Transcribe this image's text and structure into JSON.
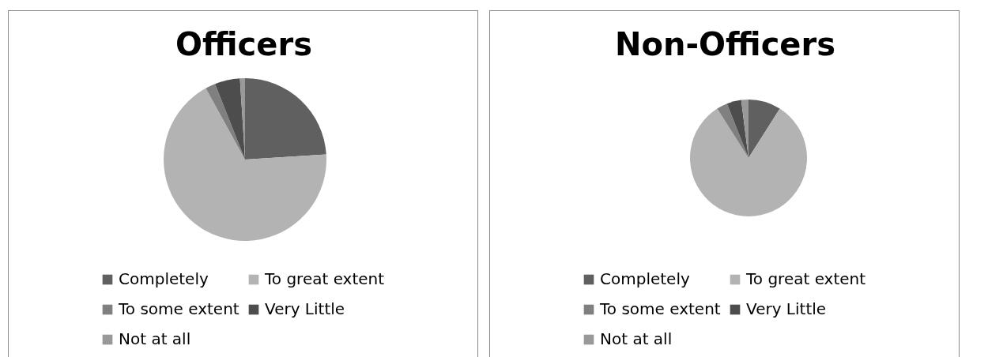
{
  "chart_data": [
    {
      "type": "pie",
      "title": "Officers",
      "categories": [
        "Completely",
        "To great extent",
        "To some extent",
        "Very Little",
        "Not at all"
      ],
      "values": [
        24,
        68,
        2,
        5,
        1
      ],
      "colors": [
        "#606060",
        "#b3b3b3",
        "#808080",
        "#4d4d4d",
        "#999999"
      ],
      "legend": "bottom"
    },
    {
      "type": "pie",
      "title": "Non-Officers",
      "categories": [
        "Completely",
        "To great extent",
        "To some extent",
        "Very Little",
        "Not at all"
      ],
      "values": [
        9,
        82,
        3,
        4,
        2
      ],
      "colors": [
        "#606060",
        "#b3b3b3",
        "#808080",
        "#4d4d4d",
        "#999999"
      ],
      "legend": "bottom"
    }
  ]
}
